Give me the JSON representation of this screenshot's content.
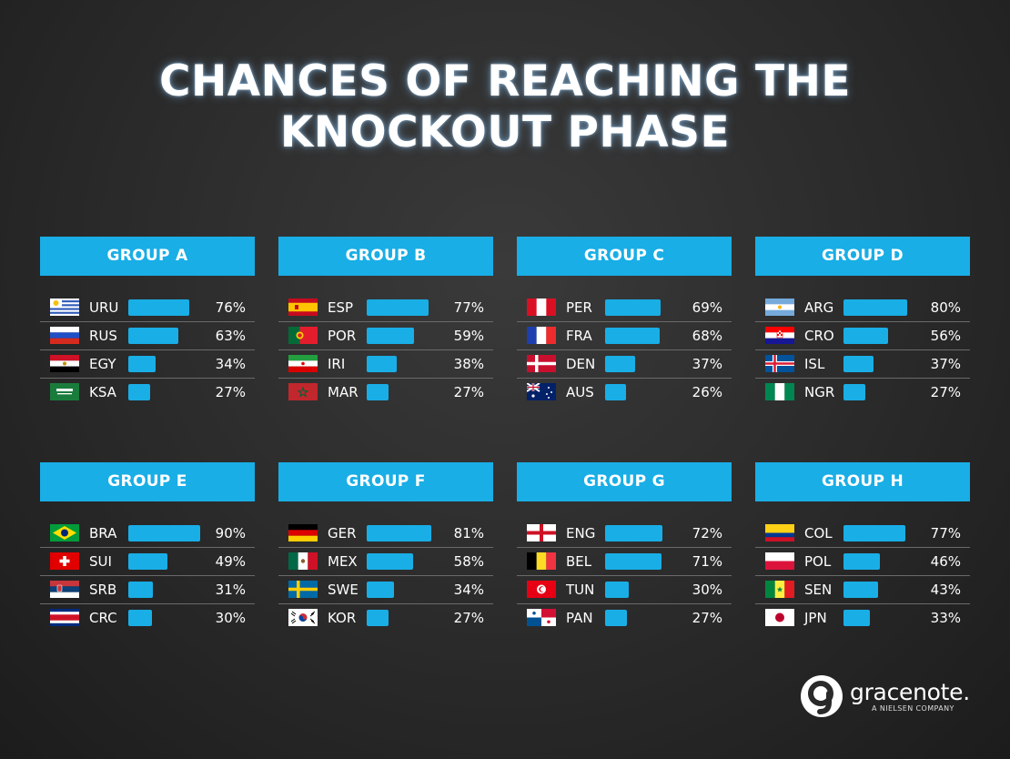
{
  "title_line1": "CHANCES OF REACHING THE",
  "title_line2": "KNOCKOUT PHASE",
  "logo": {
    "name": "gracenote.",
    "tagline": "A NIELSEN COMPANY"
  },
  "colors": {
    "accent": "#19aee6",
    "background": "#2a2a2a"
  },
  "chart_data": {
    "type": "bar",
    "groups": [
      {
        "name": "GROUP A",
        "teams": [
          {
            "code": "URU",
            "value": 76,
            "label": "76%"
          },
          {
            "code": "RUS",
            "value": 63,
            "label": "63%"
          },
          {
            "code": "EGY",
            "value": 34,
            "label": "34%"
          },
          {
            "code": "KSA",
            "value": 27,
            "label": "27%"
          }
        ]
      },
      {
        "name": "GROUP B",
        "teams": [
          {
            "code": "ESP",
            "value": 77,
            "label": "77%"
          },
          {
            "code": "POR",
            "value": 59,
            "label": "59%"
          },
          {
            "code": "IRI",
            "value": 38,
            "label": "38%"
          },
          {
            "code": "MAR",
            "value": 27,
            "label": "27%"
          }
        ]
      },
      {
        "name": "GROUP C",
        "teams": [
          {
            "code": "PER",
            "value": 69,
            "label": "69%"
          },
          {
            "code": "FRA",
            "value": 68,
            "label": "68%"
          },
          {
            "code": "DEN",
            "value": 37,
            "label": "37%"
          },
          {
            "code": "AUS",
            "value": 26,
            "label": "26%"
          }
        ]
      },
      {
        "name": "GROUP D",
        "teams": [
          {
            "code": "ARG",
            "value": 80,
            "label": "80%"
          },
          {
            "code": "CRO",
            "value": 56,
            "label": "56%"
          },
          {
            "code": "ISL",
            "value": 37,
            "label": "37%"
          },
          {
            "code": "NGR",
            "value": 27,
            "label": "27%"
          }
        ]
      },
      {
        "name": "GROUP E",
        "teams": [
          {
            "code": "BRA",
            "value": 90,
            "label": "90%"
          },
          {
            "code": "SUI",
            "value": 49,
            "label": "49%"
          },
          {
            "code": "SRB",
            "value": 31,
            "label": "31%"
          },
          {
            "code": "CRC",
            "value": 30,
            "label": "30%"
          }
        ]
      },
      {
        "name": "GROUP F",
        "teams": [
          {
            "code": "GER",
            "value": 81,
            "label": "81%"
          },
          {
            "code": "MEX",
            "value": 58,
            "label": "58%"
          },
          {
            "code": "SWE",
            "value": 34,
            "label": "34%"
          },
          {
            "code": "KOR",
            "value": 27,
            "label": "27%"
          }
        ]
      },
      {
        "name": "GROUP G",
        "teams": [
          {
            "code": "ENG",
            "value": 72,
            "label": "72%"
          },
          {
            "code": "BEL",
            "value": 71,
            "label": "71%"
          },
          {
            "code": "TUN",
            "value": 30,
            "label": "30%"
          },
          {
            "code": "PAN",
            "value": 27,
            "label": "27%"
          }
        ]
      },
      {
        "name": "GROUP H",
        "teams": [
          {
            "code": "COL",
            "value": 77,
            "label": "77%"
          },
          {
            "code": "POL",
            "value": 46,
            "label": "46%"
          },
          {
            "code": "SEN",
            "value": 43,
            "label": "43%"
          },
          {
            "code": "JPN",
            "value": 33,
            "label": "33%"
          }
        ]
      }
    ]
  }
}
